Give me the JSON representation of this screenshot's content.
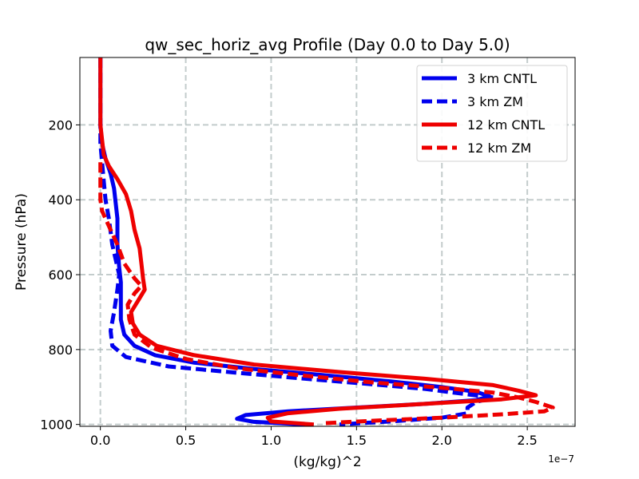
{
  "chart_data": {
    "type": "line",
    "title": "qw_sec_horiz_avg Profile (Day 0.0 to Day 5.0)",
    "xlabel": "(kg/kg)^2",
    "ylabel": "Pressure (hPa)",
    "x_offset_label": "1e−7",
    "xlim": [
      -0.12,
      2.78
    ],
    "ylim": [
      1005,
      20
    ],
    "y_inverted": true,
    "x_ticks": [
      0.0,
      0.5,
      1.0,
      1.5,
      2.0,
      2.5
    ],
    "x_tick_labels": [
      "0.0",
      "0.5",
      "1.0",
      "1.5",
      "2.0",
      "2.5"
    ],
    "y_ticks": [
      200,
      400,
      600,
      800,
      1000
    ],
    "y_tick_labels": [
      "200",
      "400",
      "600",
      "800",
      "1000"
    ],
    "grid": true,
    "legend_position": "top-right",
    "series": [
      {
        "name": "3 km CNTL",
        "color": "#0000ee",
        "style": "solid",
        "points": [
          [
            0.0,
            20
          ],
          [
            0.0,
            100
          ],
          [
            0.0,
            200
          ],
          [
            0.01,
            250
          ],
          [
            0.03,
            290
          ],
          [
            0.06,
            330
          ],
          [
            0.08,
            370
          ],
          [
            0.09,
            410
          ],
          [
            0.1,
            450
          ],
          [
            0.1,
            520
          ],
          [
            0.11,
            580
          ],
          [
            0.12,
            620
          ],
          [
            0.12,
            680
          ],
          [
            0.12,
            720
          ],
          [
            0.14,
            760
          ],
          [
            0.2,
            790
          ],
          [
            0.32,
            815
          ],
          [
            0.55,
            835
          ],
          [
            0.9,
            852
          ],
          [
            1.3,
            868
          ],
          [
            1.7,
            885
          ],
          [
            2.0,
            900
          ],
          [
            2.2,
            913
          ],
          [
            2.28,
            925
          ],
          [
            2.2,
            935
          ],
          [
            1.9,
            945
          ],
          [
            1.5,
            955
          ],
          [
            1.1,
            965
          ],
          [
            0.85,
            975
          ],
          [
            0.8,
            985
          ],
          [
            0.9,
            993
          ],
          [
            1.2,
            1000
          ]
        ]
      },
      {
        "name": "3 km ZM",
        "color": "#0000ee",
        "style": "dashed",
        "points": [
          [
            0.0,
            20
          ],
          [
            0.0,
            100
          ],
          [
            0.0,
            200
          ],
          [
            0.0,
            250
          ],
          [
            0.01,
            300
          ],
          [
            0.02,
            350
          ],
          [
            0.03,
            400
          ],
          [
            0.05,
            450
          ],
          [
            0.07,
            520
          ],
          [
            0.09,
            560
          ],
          [
            0.11,
            600
          ],
          [
            0.1,
            640
          ],
          [
            0.08,
            700
          ],
          [
            0.06,
            750
          ],
          [
            0.07,
            790
          ],
          [
            0.15,
            820
          ],
          [
            0.4,
            845
          ],
          [
            0.8,
            862
          ],
          [
            1.2,
            878
          ],
          [
            1.6,
            893
          ],
          [
            1.9,
            905
          ],
          [
            2.12,
            918
          ],
          [
            2.3,
            928
          ],
          [
            2.2,
            940
          ],
          [
            2.15,
            955
          ],
          [
            2.15,
            970
          ],
          [
            2.0,
            982
          ],
          [
            1.7,
            992
          ],
          [
            1.4,
            1000
          ]
        ]
      },
      {
        "name": "12 km CNTL",
        "color": "#ee0000",
        "style": "solid",
        "points": [
          [
            0.0,
            20
          ],
          [
            0.0,
            80
          ],
          [
            0.0,
            150
          ],
          [
            0.0,
            200
          ],
          [
            0.01,
            240
          ],
          [
            0.02,
            280
          ],
          [
            0.05,
            310
          ],
          [
            0.1,
            345
          ],
          [
            0.15,
            385
          ],
          [
            0.18,
            430
          ],
          [
            0.2,
            480
          ],
          [
            0.23,
            530
          ],
          [
            0.24,
            570
          ],
          [
            0.25,
            610
          ],
          [
            0.26,
            640
          ],
          [
            0.22,
            670
          ],
          [
            0.18,
            700
          ],
          [
            0.19,
            730
          ],
          [
            0.23,
            760
          ],
          [
            0.33,
            790
          ],
          [
            0.55,
            815
          ],
          [
            0.9,
            840
          ],
          [
            1.4,
            860
          ],
          [
            1.9,
            878
          ],
          [
            2.3,
            895
          ],
          [
            2.45,
            910
          ],
          [
            2.55,
            922
          ],
          [
            2.35,
            933
          ],
          [
            1.9,
            945
          ],
          [
            1.4,
            958
          ],
          [
            1.1,
            970
          ],
          [
            0.98,
            982
          ],
          [
            1.0,
            992
          ],
          [
            1.25,
            1000
          ]
        ]
      },
      {
        "name": "12 km ZM",
        "color": "#ee0000",
        "style": "dashed",
        "points": [
          [
            0.0,
            300
          ],
          [
            0.0,
            320
          ],
          [
            0.0,
            360
          ],
          [
            0.0,
            400
          ],
          [
            0.01,
            430
          ],
          [
            0.05,
            470
          ],
          [
            0.1,
            520
          ],
          [
            0.14,
            570
          ],
          [
            0.2,
            610
          ],
          [
            0.24,
            630
          ],
          [
            0.2,
            650
          ],
          [
            0.16,
            680
          ],
          [
            0.17,
            720
          ],
          [
            0.2,
            760
          ],
          [
            0.3,
            795
          ],
          [
            0.5,
            825
          ],
          [
            0.8,
            850
          ],
          [
            1.2,
            870
          ],
          [
            1.6,
            888
          ],
          [
            2.0,
            902
          ],
          [
            2.3,
            915
          ],
          [
            2.45,
            928
          ],
          [
            2.55,
            940
          ],
          [
            2.65,
            955
          ],
          [
            2.6,
            965
          ],
          [
            2.35,
            973
          ],
          [
            2.0,
            982
          ],
          [
            1.6,
            990
          ],
          [
            1.3,
            997
          ]
        ]
      }
    ]
  }
}
